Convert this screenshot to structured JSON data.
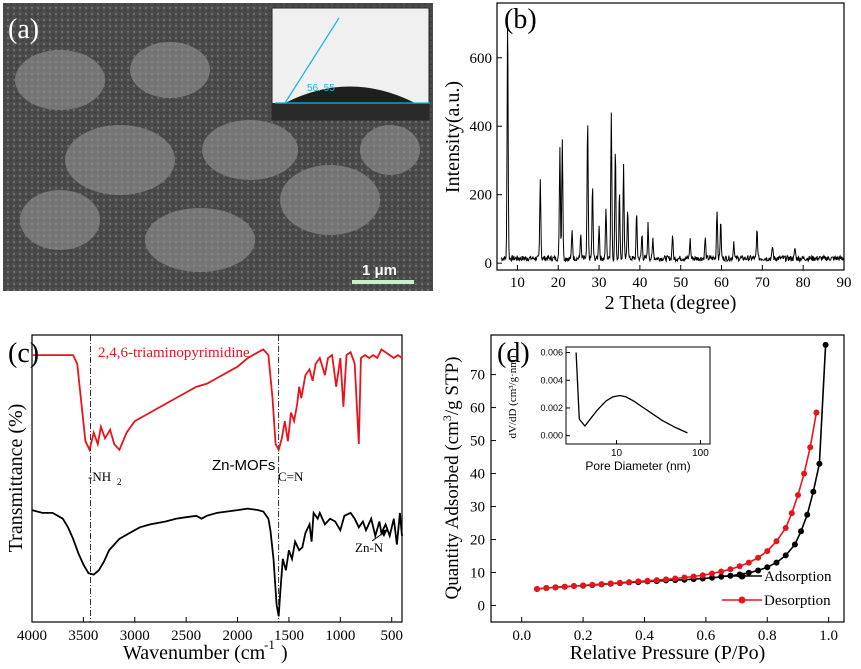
{
  "panel_a": {
    "panel_label": "(a)",
    "scale_bar_label": "1 μm",
    "contact_angle_label": "56. 55"
  },
  "chart_data": [
    {
      "type": "line",
      "panel_label": "(b)",
      "xlabel": "2 Theta (degree)",
      "ylabel": "Intensity(a.u.)",
      "xlim": [
        5,
        90
      ],
      "ylim": [
        -20,
        760
      ],
      "x_ticks": [
        "10",
        "20",
        "30",
        "40",
        "50",
        "60",
        "70",
        "80",
        "90"
      ],
      "y_ticks": [
        "0",
        "200",
        "400",
        "600"
      ],
      "peaks": [
        [
          7.6,
          720
        ],
        [
          15.6,
          230
        ],
        [
          20.4,
          325
        ],
        [
          21.0,
          350
        ],
        [
          23.4,
          80
        ],
        [
          25.5,
          70
        ],
        [
          27.2,
          400
        ],
        [
          28.4,
          210
        ],
        [
          30.0,
          100
        ],
        [
          31.7,
          145
        ],
        [
          33.0,
          430
        ],
        [
          34.0,
          320
        ],
        [
          35.0,
          190
        ],
        [
          36.0,
          280
        ],
        [
          37.0,
          150
        ],
        [
          39.2,
          130
        ],
        [
          40.5,
          70
        ],
        [
          42.0,
          100
        ],
        [
          43.2,
          60
        ],
        [
          48.0,
          70
        ],
        [
          52.3,
          55
        ],
        [
          56.0,
          60
        ],
        [
          58.9,
          145
        ],
        [
          59.8,
          110
        ],
        [
          63.0,
          50
        ],
        [
          68.7,
          85
        ],
        [
          72.5,
          35
        ],
        [
          78.0,
          30
        ]
      ],
      "color": "#000000"
    },
    {
      "type": "line",
      "panel_label": "(c)",
      "xlabel": "Wavenumber (cm",
      "xlabel_sup": "-1",
      "xlabel_end": ")",
      "ylabel": "Transmittance (%)",
      "xlim": [
        4000,
        400
      ],
      "x_ticks": [
        "4000",
        "3500",
        "3000",
        "2500",
        "2000",
        "1500",
        "1000",
        "500"
      ],
      "series": [
        {
          "name": "2,4,6-triaminopyrimidine",
          "color": "#e8141c",
          "points": [
            [
              4000,
              0.93
            ],
            [
              3800,
              0.93
            ],
            [
              3600,
              0.93
            ],
            [
              3560,
              0.9
            ],
            [
              3480,
              0.63
            ],
            [
              3440,
              0.6
            ],
            [
              3400,
              0.66
            ],
            [
              3360,
              0.62
            ],
            [
              3330,
              0.68
            ],
            [
              3290,
              0.64
            ],
            [
              3240,
              0.67
            ],
            [
              3200,
              0.62
            ],
            [
              3150,
              0.6
            ],
            [
              3080,
              0.66
            ],
            [
              3000,
              0.7
            ],
            [
              2900,
              0.72
            ],
            [
              2800,
              0.74
            ],
            [
              2700,
              0.76
            ],
            [
              2600,
              0.78
            ],
            [
              2500,
              0.8
            ],
            [
              2400,
              0.82
            ],
            [
              2300,
              0.83
            ],
            [
              2200,
              0.85
            ],
            [
              2100,
              0.87
            ],
            [
              2000,
              0.89
            ],
            [
              1900,
              0.92
            ],
            [
              1800,
              0.94
            ],
            [
              1750,
              0.95
            ],
            [
              1700,
              0.93
            ],
            [
              1660,
              0.78
            ],
            [
              1630,
              0.62
            ],
            [
              1600,
              0.6
            ],
            [
              1570,
              0.64
            ],
            [
              1540,
              0.7
            ],
            [
              1510,
              0.63
            ],
            [
              1480,
              0.73
            ],
            [
              1450,
              0.7
            ],
            [
              1420,
              0.76
            ],
            [
              1400,
              0.82
            ],
            [
              1380,
              0.78
            ],
            [
              1340,
              0.86
            ],
            [
              1300,
              0.88
            ],
            [
              1270,
              0.84
            ],
            [
              1240,
              0.9
            ],
            [
              1200,
              0.92
            ],
            [
              1150,
              0.86
            ],
            [
              1120,
              0.92
            ],
            [
              1080,
              0.93
            ],
            [
              1040,
              0.82
            ],
            [
              1000,
              0.92
            ],
            [
              970,
              0.75
            ],
            [
              940,
              0.93
            ],
            [
              900,
              0.94
            ],
            [
              860,
              0.9
            ],
            [
              820,
              0.62
            ],
            [
              800,
              0.92
            ],
            [
              760,
              0.93
            ],
            [
              720,
              0.92
            ],
            [
              680,
              0.93
            ],
            [
              640,
              0.92
            ],
            [
              600,
              0.95
            ],
            [
              560,
              0.94
            ],
            [
              520,
              0.93
            ],
            [
              480,
              0.92
            ],
            [
              440,
              0.93
            ],
            [
              400,
              0.92
            ]
          ]
        },
        {
          "name": "Zn-MOFs",
          "color": "#000000",
          "points": [
            [
              4000,
              0.39
            ],
            [
              3900,
              0.38
            ],
            [
              3800,
              0.38
            ],
            [
              3700,
              0.36
            ],
            [
              3650,
              0.33
            ],
            [
              3600,
              0.29
            ],
            [
              3550,
              0.24
            ],
            [
              3500,
              0.2
            ],
            [
              3450,
              0.17
            ],
            [
              3400,
              0.165
            ],
            [
              3350,
              0.18
            ],
            [
              3300,
              0.21
            ],
            [
              3250,
              0.25
            ],
            [
              3150,
              0.29
            ],
            [
              3050,
              0.31
            ],
            [
              2950,
              0.33
            ],
            [
              2850,
              0.34
            ],
            [
              2700,
              0.35
            ],
            [
              2600,
              0.36
            ],
            [
              2500,
              0.365
            ],
            [
              2400,
              0.37
            ],
            [
              2350,
              0.36
            ],
            [
              2300,
              0.37
            ],
            [
              2200,
              0.38
            ],
            [
              2100,
              0.385
            ],
            [
              2000,
              0.39
            ],
            [
              1900,
              0.395
            ],
            [
              1800,
              0.39
            ],
            [
              1750,
              0.385
            ],
            [
              1700,
              0.36
            ],
            [
              1680,
              0.32
            ],
            [
              1650,
              0.22
            ],
            [
              1620,
              0.06
            ],
            [
              1600,
              0.02
            ],
            [
              1585,
              0.1
            ],
            [
              1560,
              0.22
            ],
            [
              1530,
              0.18
            ],
            [
              1500,
              0.25
            ],
            [
              1470,
              0.22
            ],
            [
              1440,
              0.28
            ],
            [
              1400,
              0.25
            ],
            [
              1370,
              0.26
            ],
            [
              1340,
              0.31
            ],
            [
              1300,
              0.34
            ],
            [
              1280,
              0.28
            ],
            [
              1260,
              0.38
            ],
            [
              1220,
              0.36
            ],
            [
              1200,
              0.38
            ],
            [
              1150,
              0.34
            ],
            [
              1100,
              0.36
            ],
            [
              1050,
              0.35
            ],
            [
              1000,
              0.32
            ],
            [
              960,
              0.37
            ],
            [
              900,
              0.38
            ],
            [
              860,
              0.36
            ],
            [
              820,
              0.33
            ],
            [
              780,
              0.35
            ],
            [
              750,
              0.32
            ],
            [
              700,
              0.36
            ],
            [
              660,
              0.3
            ],
            [
              620,
              0.35
            ],
            [
              600,
              0.31
            ],
            [
              560,
              0.34
            ],
            [
              520,
              0.3
            ],
            [
              480,
              0.36
            ],
            [
              450,
              0.27
            ],
            [
              420,
              0.38
            ],
            [
              400,
              0.3
            ]
          ]
        }
      ],
      "annotations": [
        "-NH",
        "2",
        "C=N",
        "Zn-MOFs",
        "Zn-N"
      ],
      "vlines": [
        3430,
        1600
      ]
    },
    {
      "type": "line",
      "panel_label": "(d)",
      "xlabel": "Relative Pressure (P/Po)",
      "ylabel": "Quantity Adsorbed (cm",
      "ylabel_sup": "3",
      "ylabel_end": "/g STP)",
      "xlim": [
        -0.1,
        1.05
      ],
      "ylim": [
        -5,
        82
      ],
      "x_ticks": [
        "0.0",
        "0.2",
        "0.4",
        "0.6",
        "0.8",
        "1.0"
      ],
      "y_ticks": [
        "0",
        "10",
        "20",
        "30",
        "40",
        "50",
        "60",
        "70"
      ],
      "legend": "bottom-right",
      "series": [
        {
          "name": "Adsorption",
          "color": "#000000",
          "points": [
            [
              0.05,
              5.0
            ],
            [
              0.08,
              5.3
            ],
            [
              0.11,
              5.5
            ],
            [
              0.14,
              5.7
            ],
            [
              0.17,
              5.9
            ],
            [
              0.2,
              6.0
            ],
            [
              0.23,
              6.2
            ],
            [
              0.26,
              6.4
            ],
            [
              0.29,
              6.6
            ],
            [
              0.32,
              6.8
            ],
            [
              0.35,
              7.0
            ],
            [
              0.38,
              7.1
            ],
            [
              0.41,
              7.3
            ],
            [
              0.44,
              7.4
            ],
            [
              0.47,
              7.6
            ],
            [
              0.5,
              7.7
            ],
            [
              0.53,
              7.8
            ],
            [
              0.56,
              8.0
            ],
            [
              0.59,
              8.2
            ],
            [
              0.62,
              8.4
            ],
            [
              0.65,
              8.7
            ],
            [
              0.68,
              9.0
            ],
            [
              0.71,
              9.4
            ],
            [
              0.74,
              9.9
            ],
            [
              0.77,
              10.6
            ],
            [
              0.8,
              11.6
            ],
            [
              0.83,
              13.0
            ],
            [
              0.86,
              15.2
            ],
            [
              0.89,
              18.5
            ],
            [
              0.91,
              22.5
            ],
            [
              0.93,
              27.5
            ],
            [
              0.95,
              34.5
            ],
            [
              0.97,
              43.0
            ],
            [
              0.99,
              79.0
            ]
          ]
        },
        {
          "name": "Desorption",
          "color": "#e8141c",
          "points": [
            [
              0.05,
              5.0
            ],
            [
              0.08,
              5.3
            ],
            [
              0.11,
              5.5
            ],
            [
              0.14,
              5.7
            ],
            [
              0.17,
              5.9
            ],
            [
              0.2,
              6.1
            ],
            [
              0.23,
              6.3
            ],
            [
              0.26,
              6.5
            ],
            [
              0.29,
              6.7
            ],
            [
              0.32,
              6.9
            ],
            [
              0.35,
              7.1
            ],
            [
              0.38,
              7.3
            ],
            [
              0.41,
              7.5
            ],
            [
              0.44,
              7.7
            ],
            [
              0.47,
              7.9
            ],
            [
              0.5,
              8.2
            ],
            [
              0.53,
              8.5
            ],
            [
              0.56,
              8.8
            ],
            [
              0.59,
              9.2
            ],
            [
              0.62,
              9.7
            ],
            [
              0.65,
              10.3
            ],
            [
              0.68,
              11.0
            ],
            [
              0.71,
              11.9
            ],
            [
              0.74,
              13.0
            ],
            [
              0.77,
              14.5
            ],
            [
              0.8,
              16.5
            ],
            [
              0.83,
              19.5
            ],
            [
              0.86,
              23.5
            ],
            [
              0.88,
              28.0
            ],
            [
              0.9,
              33.5
            ],
            [
              0.92,
              40.0
            ],
            [
              0.94,
              48.0
            ],
            [
              0.96,
              58.5
            ]
          ]
        }
      ]
    },
    {
      "type": "line",
      "panel_label": "(d) inset",
      "xlabel": "Pore Diameter (nm)",
      "ylabel": "dV/dD (cm³/g·nm)",
      "x_scale": "log",
      "xlim": [
        2.5,
        130
      ],
      "ylim": [
        -0.0006,
        0.0064
      ],
      "x_ticks": [
        "10",
        "100"
      ],
      "y_ticks": [
        "0.000",
        "0.002",
        "0.004",
        "0.006"
      ],
      "points": [
        [
          3.3,
          0.006
        ],
        [
          3.6,
          0.0012
        ],
        [
          4.2,
          0.0007
        ],
        [
          5,
          0.0013
        ],
        [
          6,
          0.0019
        ],
        [
          7.5,
          0.0025
        ],
        [
          9,
          0.0028
        ],
        [
          11,
          0.0029
        ],
        [
          13,
          0.0028
        ],
        [
          16,
          0.0025
        ],
        [
          20,
          0.0021
        ],
        [
          25,
          0.0017
        ],
        [
          35,
          0.0011
        ],
        [
          50,
          0.0006
        ],
        [
          70,
          0.0002
        ]
      ],
      "color": "#000000"
    }
  ]
}
